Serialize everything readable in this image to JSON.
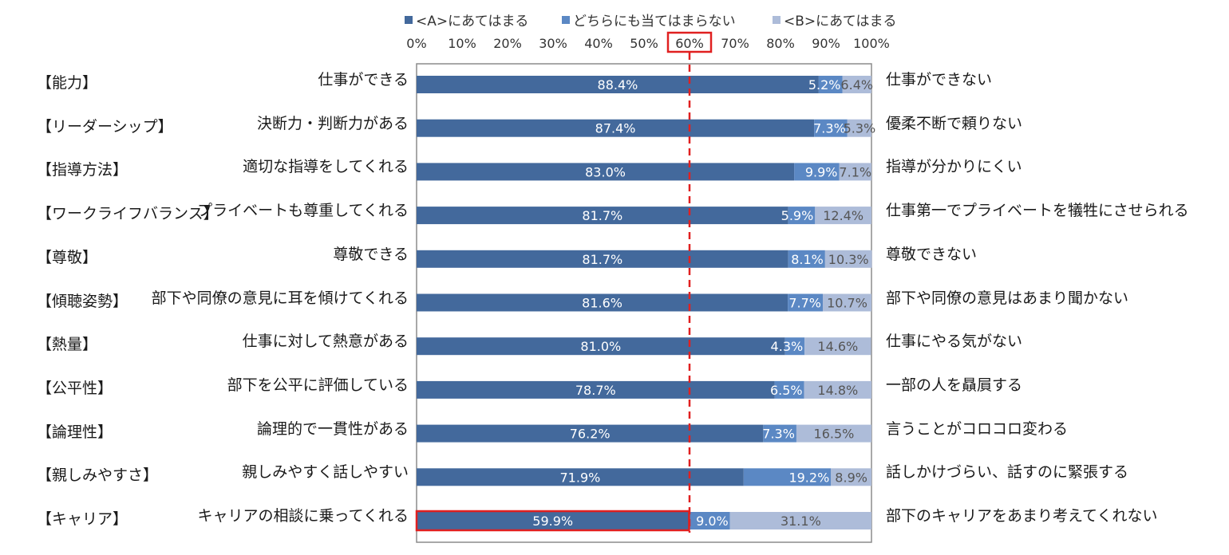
{
  "legend": [
    {
      "label": "<A>にあてはまる",
      "color": "#43699c"
    },
    {
      "label": "どちらにも当てはまらない",
      "color": "#5b88c4"
    },
    {
      "label": "<B>にあてはまる",
      "color": "#adbcd9"
    }
  ],
  "axis_ticks": [
    "0%",
    "10%",
    "20%",
    "30%",
    "40%",
    "50%",
    "60%",
    "70%",
    "80%",
    "90%",
    "100%"
  ],
  "highlight": {
    "tick": "60%",
    "value": 60,
    "row_index": 10,
    "color": "#e02020"
  },
  "chart_data": {
    "type": "bar",
    "orientation": "horizontal",
    "stacked": true,
    "xlim": [
      0,
      100
    ],
    "categories": [
      "【能力】",
      "【リーダーシップ】",
      "【指導方法】",
      "【ワークライフバランス】",
      "【尊敬】",
      "【傾聴姿勢】",
      "【熱量】",
      "【公平性】",
      "【論理性】",
      "【親しみやすさ】",
      "【キャリア】"
    ],
    "left_labels": [
      "仕事ができる",
      "決断力・判断力がある",
      "適切な指導をしてくれる",
      "プライベートも尊重してくれる",
      "尊敬できる",
      "部下や同僚の意見に耳を傾けてくれる",
      "仕事に対して熱意がある",
      "部下を公平に評価している",
      "論理的で一貫性がある",
      "親しみやすく話しやすい",
      "キャリアの相談に乗ってくれる"
    ],
    "right_labels": [
      "仕事ができない",
      "優柔不断で頼りない",
      "指導が分かりにくい",
      "仕事第一でプライベートを犠牲にさせられる",
      "尊敬できない",
      "部下や同僚の意見はあまり聞かない",
      "仕事にやる気がない",
      "一部の人を贔屓する",
      "言うことがコロコロ変わる",
      "話しかけづらい、話すのに緊張する",
      "部下のキャリアをあまり考えてくれない"
    ],
    "series": [
      {
        "name": "<A>にあてはまる",
        "values": [
          88.4,
          87.4,
          83.0,
          81.7,
          81.7,
          81.6,
          81.0,
          78.7,
          76.2,
          71.9,
          59.9
        ],
        "labels": [
          "88.4%",
          "87.4%",
          "83.0%",
          "81.7%",
          "81.7%",
          "81.6%",
          "81.0%",
          "78.7%",
          "76.2%",
          "71.9%",
          "59.9%"
        ]
      },
      {
        "name": "どちらにも当てはまらない",
        "values": [
          5.2,
          7.3,
          9.9,
          5.9,
          8.1,
          7.7,
          4.3,
          6.5,
          7.3,
          19.2,
          9.0
        ],
        "labels": [
          "5.2%",
          "7.3%",
          "9.9%",
          "5.9%",
          "8.1%",
          "7.7%",
          "4.3%",
          "6.5%",
          "7.3%",
          "19.2%",
          "9.0%"
        ]
      },
      {
        "name": "<B>にあてはまる",
        "values": [
          6.4,
          5.3,
          7.1,
          12.4,
          10.3,
          10.7,
          14.6,
          14.8,
          16.5,
          8.9,
          31.1
        ],
        "labels": [
          "6.4%",
          "5.3%",
          "7.1%",
          "12.4%",
          "10.3%",
          "10.7%",
          "14.6%",
          "14.8%",
          "16.5%",
          "8.9%",
          "31.1%"
        ]
      }
    ]
  }
}
